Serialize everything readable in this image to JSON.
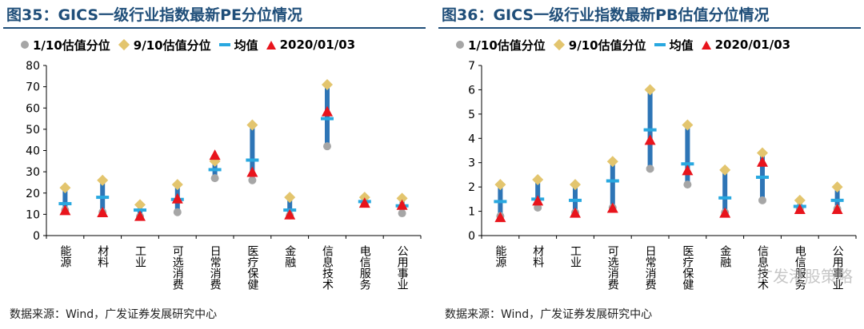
{
  "chart_data": [
    {
      "id": "pe",
      "type": "range-dot",
      "title": "图35：GICS一级行业指数最新PE分位情况",
      "legend": {
        "min_label": "1/10估值分位",
        "max_label": "9/10估值分位",
        "mean_label": "均值",
        "current_label": "2020/01/03"
      },
      "ylim": [
        0,
        80
      ],
      "yticks": [
        0,
        10,
        20,
        30,
        40,
        50,
        60,
        70,
        80
      ],
      "categories": [
        "能源",
        "材料",
        "工业",
        "可选消费",
        "日常消费",
        "医疗保健",
        "金融",
        "信息技术",
        "电信服务",
        "公用事业"
      ],
      "p10": [
        12,
        11,
        9,
        11,
        27,
        26,
        9.5,
        42,
        15,
        10.5
      ],
      "p90": [
        22.5,
        26,
        14.5,
        24,
        35,
        52,
        18,
        71,
        18,
        17.5
      ],
      "mean": [
        15,
        18,
        12,
        17,
        31,
        35.5,
        12,
        55,
        16,
        14
      ],
      "current": [
        11.5,
        10.5,
        8.8,
        17,
        37.5,
        29.5,
        9.5,
        58,
        15,
        14
      ],
      "colors": {
        "bar": "#2e75b6",
        "min": "#a6a6a6",
        "max": "#e3c56e",
        "mean": "#29a8e0",
        "current": "#e8141c"
      },
      "source": "数据来源：Wind，广发证券发展研究中心",
      "watermark": "Wind，"
    },
    {
      "id": "pb",
      "type": "range-dot",
      "title": "图36：GICS一级行业指数最新PB估值分位情况",
      "legend": {
        "min_label": "1/10估值分位",
        "max_label": "9/10估值分位",
        "mean_label": "均值",
        "current_label": "2020/01/03"
      },
      "ylim": [
        0,
        7
      ],
      "yticks": [
        0,
        1,
        2,
        3,
        4,
        5,
        6,
        7
      ],
      "categories": [
        "能源",
        "材料",
        "工业",
        "可选消费",
        "日常消费",
        "医疗保健",
        "金融",
        "信息技术",
        "电信服务",
        "公用事业"
      ],
      "p10": [
        0.8,
        1.15,
        0.95,
        1.15,
        2.75,
        2.1,
        0.95,
        1.45,
        1.1,
        1.1
      ],
      "p90": [
        2.1,
        2.3,
        2.1,
        3.05,
        6.0,
        4.55,
        2.7,
        3.4,
        1.45,
        2.0
      ],
      "mean": [
        1.4,
        1.5,
        1.45,
        2.25,
        4.35,
        2.95,
        1.55,
        2.4,
        1.2,
        1.45
      ],
      "current": [
        0.72,
        1.4,
        0.9,
        1.1,
        3.9,
        2.65,
        0.9,
        3.0,
        1.05,
        1.05
      ],
      "colors": {
        "bar": "#2e75b6",
        "min": "#a6a6a6",
        "max": "#e3c56e",
        "mean": "#29a8e0",
        "current": "#e8141c"
      },
      "source": "数据来源：Wind，广发证券发展研究中心",
      "watermark": "广发港股策略"
    }
  ]
}
